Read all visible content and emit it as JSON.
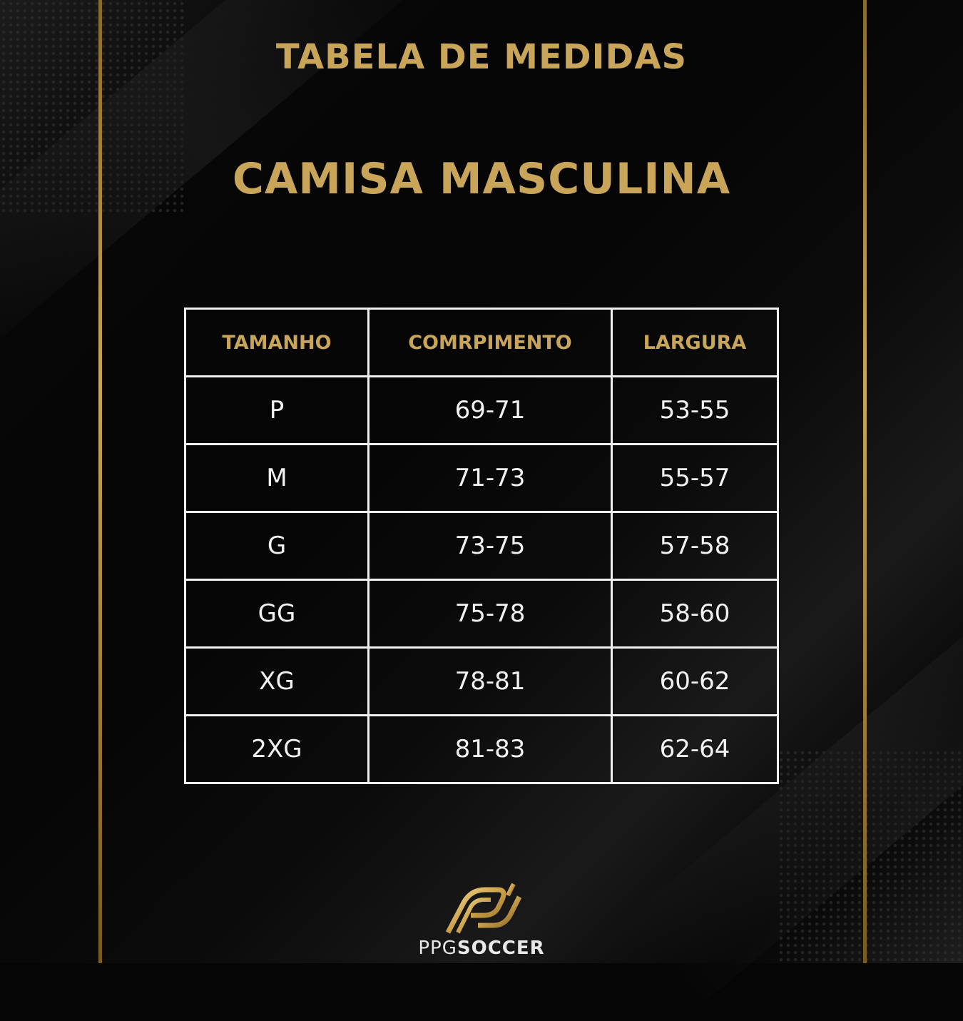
{
  "title": "TABELA DE MEDIDAS",
  "subtitle": "CAMISA MASCULINA",
  "table": {
    "headers": [
      "TAMANHO",
      "COMRPIMENTO",
      "LARGURA"
    ],
    "rows": [
      [
        "P",
        "69-71",
        "53-55"
      ],
      [
        "M",
        "71-73",
        "55-57"
      ],
      [
        "G",
        "73-75",
        "57-58"
      ],
      [
        "GG",
        "75-78",
        "58-60"
      ],
      [
        "XG",
        "78-81",
        "60-62"
      ],
      [
        "2XG",
        "81-83",
        "62-64"
      ]
    ]
  },
  "brand": {
    "prefix": "PPG",
    "name": "SOCCER"
  },
  "colors": {
    "gold": "#c9a55a",
    "background": "#050505",
    "table_text": "#f2f2f2"
  }
}
